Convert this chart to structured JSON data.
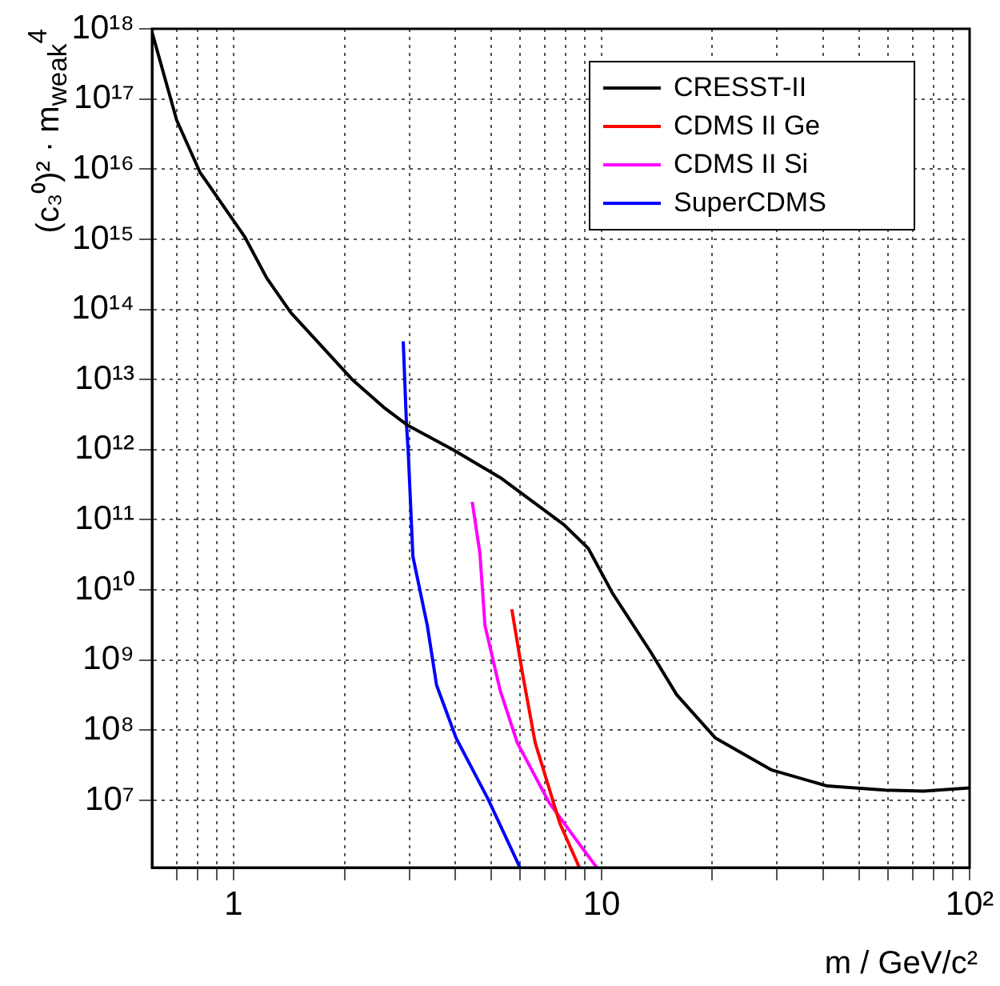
{
  "chart_data": {
    "type": "line",
    "xlabel": "m / GeV/c²",
    "ylabel": "(c₃⁰)² · m$_{weak}$$^{4}$",
    "log": "xy",
    "grid": true,
    "legend": "top right",
    "marker": "none",
    "line_style": "solid",
    "xlim": [
      0.6,
      100
    ],
    "ylim": [
      1100000,
      1e+18
    ],
    "xticks": [
      {
        "value": 0.7,
        "label": null
      },
      {
        "value": 0.8,
        "label": null
      },
      {
        "value": 0.9,
        "label": null
      },
      1,
      {
        "value": 2,
        "label": null
      },
      {
        "value": 3,
        "label": null
      },
      {
        "value": 4,
        "label": null
      },
      {
        "value": 5,
        "label": null
      },
      {
        "value": 6,
        "label": null
      },
      {
        "value": 7,
        "label": null
      },
      {
        "value": 8,
        "label": null
      },
      {
        "value": 9,
        "label": null
      },
      10,
      {
        "value": 20,
        "label": null
      },
      {
        "value": 30,
        "label": null
      },
      {
        "value": 40,
        "label": null
      },
      {
        "value": 50,
        "label": null
      },
      {
        "value": 60,
        "label": null
      },
      {
        "value": 70,
        "label": null
      },
      {
        "value": 80,
        "label": null
      },
      {
        "value": 90,
        "label": null
      },
      {
        "value": 100,
        "label": "10²"
      }
    ],
    "yticks": [
      {
        "value": 10000000.0,
        "label": "10⁷"
      },
      {
        "value": 100000000.0,
        "label": "10⁸"
      },
      {
        "value": 1000000000.0,
        "label": "10⁹"
      },
      {
        "value": 10000000000.0,
        "label": "10¹⁰"
      },
      {
        "value": 100000000000.0,
        "label": "10¹¹"
      },
      {
        "value": 1000000000000.0,
        "label": "10¹²"
      },
      {
        "value": 10000000000000.0,
        "label": "10¹³"
      },
      {
        "value": 100000000000000.0,
        "label": "10¹⁴"
      },
      {
        "value": 1000000000000000.0,
        "label": "10¹⁵"
      },
      {
        "value": 1e+16,
        "label": "10¹⁶"
      },
      {
        "value": 1e+17,
        "label": "10¹⁷"
      },
      {
        "value": 1e+18,
        "label": "10¹⁸"
      }
    ],
    "series": [
      {
        "name": "CRESST-II",
        "color": "#000000",
        "x": [
          0.6,
          0.7,
          0.81,
          1.07,
          1.23,
          1.43,
          2.1,
          2.56,
          2.98,
          3.94,
          5.3,
          7.9,
          9.2,
          10.7,
          13.6,
          16,
          20.4,
          29,
          41,
          59,
          75,
          100
        ],
        "values": [
          9e+17,
          5e+16,
          9000000000000000.0,
          1100000000000000.0,
          280000000000000.0,
          90000000000000.0,
          10000000000000.0,
          4000000000000.0,
          2200000000000.0,
          1000000000000.0,
          400000000000.0,
          85000000000.0,
          39000000000.0,
          9000000000.0,
          1300000000.0,
          320000000.0,
          77000000.0,
          27000000.0,
          16000000.0,
          14000000.0,
          13500000.0,
          15000000.0
        ]
      },
      {
        "name": "CDMS II Ge",
        "color": "#ff0000",
        "x": [
          5.7,
          6.1,
          6.6,
          7.7,
          8.7
        ],
        "values": [
          5300000000.0,
          630000000.0,
          66000000.0,
          4700000.0,
          1100000
        ]
      },
      {
        "name": "CDMS II Si",
        "color": "#ff00ff",
        "x": [
          4.45,
          4.67,
          4.82,
          5.3,
          5.9,
          7.2,
          8.5,
          9.7
        ],
        "values": [
          180000000000.0,
          33000000000.0,
          3100000000.0,
          370000000.0,
          66000000.0,
          9300000.0,
          2800000.0,
          1100000
        ]
      },
      {
        "name": "SuperCDMS",
        "color": "#0000ff",
        "x": [
          2.89,
          2.95,
          2.98,
          3.07,
          3.36,
          3.56,
          4.02,
          4.91,
          6.0
        ],
        "values": [
          35000000000000.0,
          2200000000000.0,
          1000000000000.0,
          30000000000.0,
          3100000000.0,
          440000000.0,
          78000000.0,
          10500000.0,
          1100000
        ]
      }
    ]
  }
}
